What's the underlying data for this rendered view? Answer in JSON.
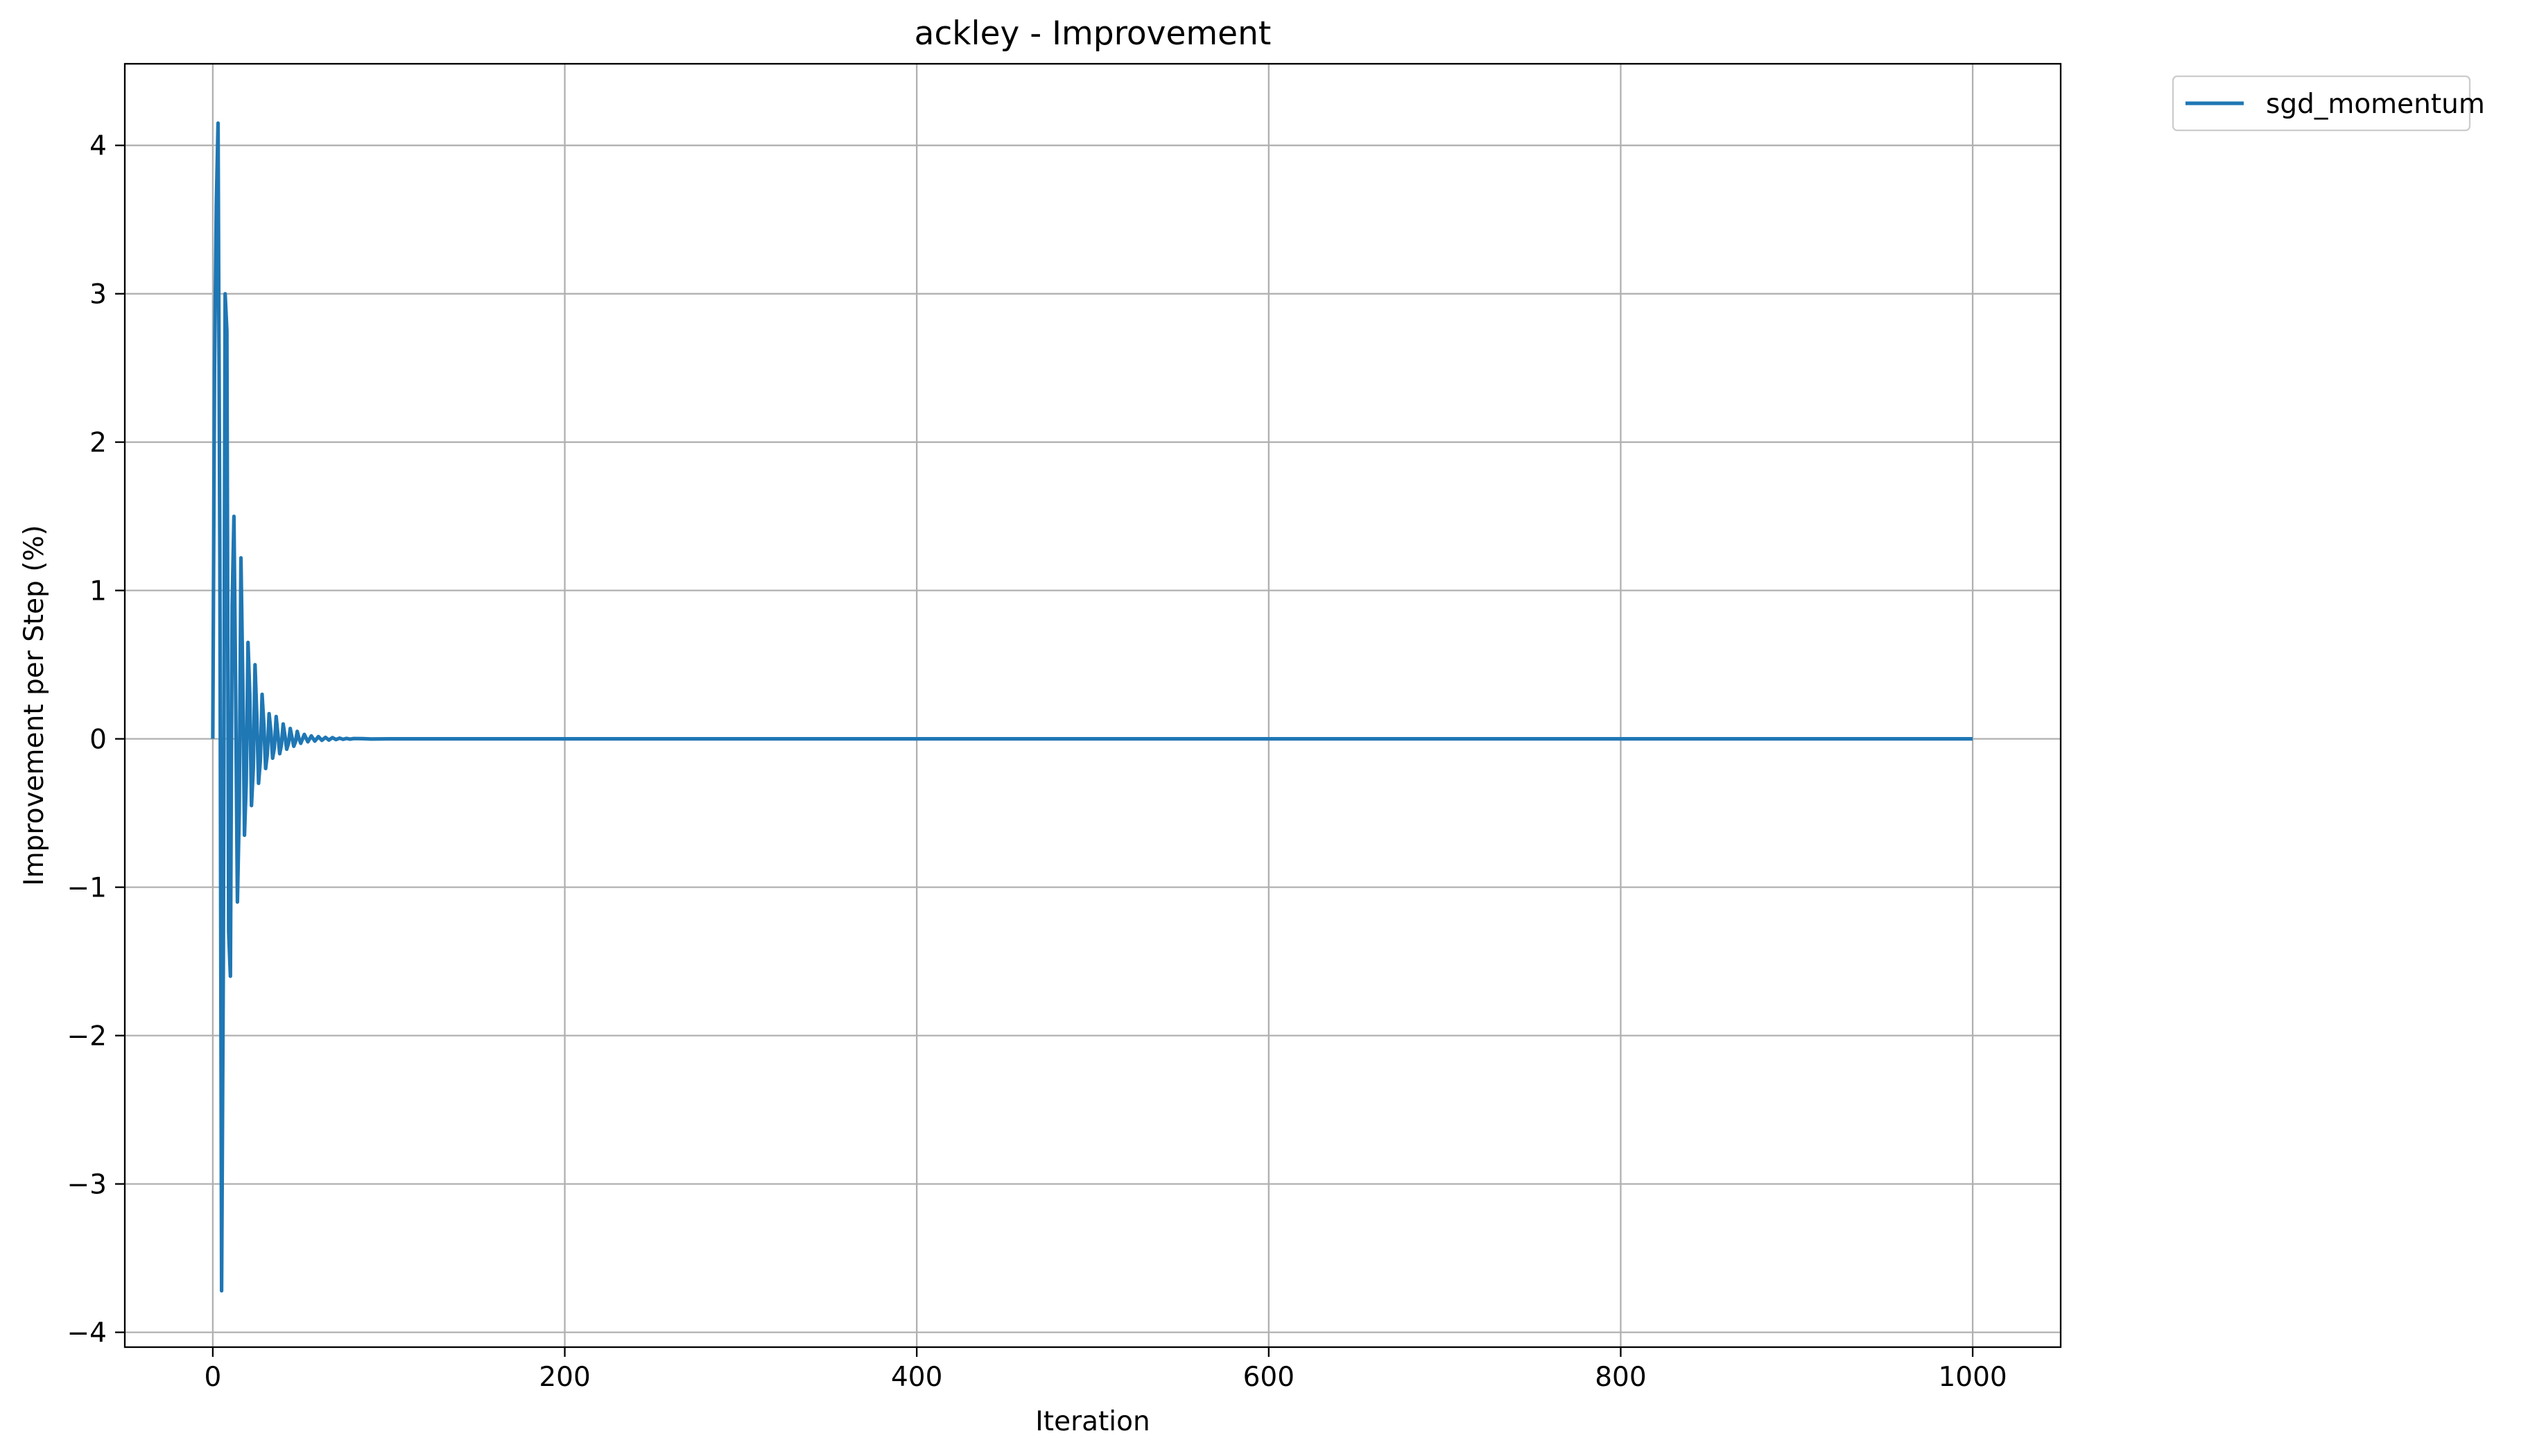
{
  "chart_data": {
    "type": "line",
    "title": "ackley - Improvement",
    "xlabel": "Iteration",
    "ylabel": "Improvement per Step (%)",
    "xlim": [
      -50,
      1050
    ],
    "ylim": [
      -4.1,
      4.55
    ],
    "xticks": [
      0,
      200,
      400,
      600,
      800,
      1000
    ],
    "yticks": [
      -4,
      -3,
      -2,
      -1,
      0,
      1,
      2,
      3,
      4
    ],
    "xtick_labels": [
      "0",
      "200",
      "400",
      "600",
      "800",
      "1000"
    ],
    "ytick_labels": [
      "−4",
      "−3",
      "−2",
      "−1",
      "0",
      "1",
      "2",
      "3",
      "4"
    ],
    "grid": true,
    "legend_position": "outside-top-right",
    "series": [
      {
        "name": "sgd_momentum",
        "color": "#1f77b4",
        "x": [
          0,
          1,
          2,
          3,
          4,
          5,
          6,
          7,
          8,
          9,
          10,
          11,
          12,
          13,
          14,
          15,
          16,
          17,
          18,
          19,
          20,
          21,
          22,
          23,
          24,
          25,
          26,
          27,
          28,
          29,
          30,
          31,
          32,
          33,
          34,
          35,
          36,
          37,
          38,
          39,
          40,
          41,
          42,
          43,
          44,
          45,
          46,
          47,
          48,
          49,
          50,
          52,
          54,
          56,
          58,
          60,
          62,
          64,
          66,
          68,
          70,
          72,
          74,
          76,
          78,
          80,
          85,
          90,
          100,
          150,
          200,
          400,
          600,
          800,
          1000
        ],
        "values": [
          0.0,
          2.5,
          3.6,
          4.15,
          1.2,
          -3.72,
          -1.5,
          3.0,
          2.75,
          -1.3,
          -1.6,
          0.9,
          1.5,
          0.3,
          -1.1,
          -0.5,
          1.22,
          0.4,
          -0.65,
          -0.3,
          0.65,
          0.3,
          -0.45,
          -0.2,
          0.5,
          0.15,
          -0.3,
          -0.15,
          0.3,
          0.1,
          -0.2,
          -0.1,
          0.17,
          0.05,
          -0.13,
          -0.06,
          0.15,
          0.03,
          -0.1,
          -0.04,
          0.1,
          0.02,
          -0.07,
          -0.03,
          0.07,
          0.01,
          -0.05,
          -0.02,
          0.05,
          0.0,
          -0.03,
          0.03,
          -0.02,
          0.02,
          -0.015,
          0.015,
          -0.01,
          0.01,
          -0.008,
          0.008,
          -0.005,
          0.005,
          -0.003,
          0.003,
          -0.002,
          0.002,
          0.001,
          -0.001,
          0.0,
          0.0,
          0.0,
          0.0,
          0.0,
          0.0,
          0.0
        ]
      }
    ]
  }
}
